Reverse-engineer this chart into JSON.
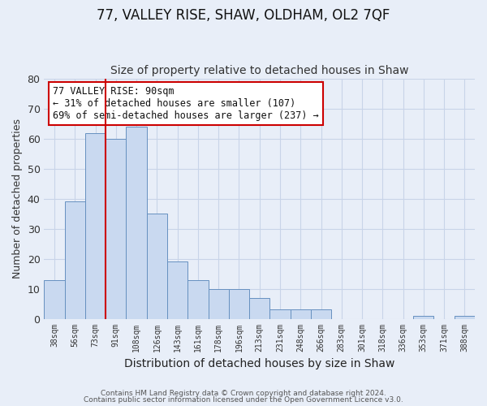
{
  "title": "77, VALLEY RISE, SHAW, OLDHAM, OL2 7QF",
  "subtitle": "Size of property relative to detached houses in Shaw",
  "xlabel": "Distribution of detached houses by size in Shaw",
  "ylabel": "Number of detached properties",
  "bar_labels": [
    "38sqm",
    "56sqm",
    "73sqm",
    "91sqm",
    "108sqm",
    "126sqm",
    "143sqm",
    "161sqm",
    "178sqm",
    "196sqm",
    "213sqm",
    "231sqm",
    "248sqm",
    "266sqm",
    "283sqm",
    "301sqm",
    "318sqm",
    "336sqm",
    "353sqm",
    "371sqm",
    "388sqm"
  ],
  "bar_values": [
    13,
    39,
    62,
    60,
    64,
    35,
    19,
    13,
    10,
    10,
    7,
    3,
    3,
    3,
    0,
    0,
    0,
    0,
    1,
    0,
    1
  ],
  "bar_color": "#c9d9f0",
  "bar_edge_color": "#6690c0",
  "vline_color": "#cc0000",
  "ylim": [
    0,
    80
  ],
  "yticks": [
    0,
    10,
    20,
    30,
    40,
    50,
    60,
    70,
    80
  ],
  "annotation_title": "77 VALLEY RISE: 90sqm",
  "annotation_line1": "← 31% of detached houses are smaller (107)",
  "annotation_line2": "69% of semi-detached houses are larger (237) →",
  "annotation_box_color": "#ffffff",
  "annotation_box_edge": "#cc0000",
  "footnote1": "Contains HM Land Registry data © Crown copyright and database right 2024.",
  "footnote2": "Contains public sector information licensed under the Open Government Licence v3.0.",
  "background_color": "#e8eef8",
  "plot_background": "#e8eef8",
  "grid_color": "#c8d4e8",
  "title_fontsize": 12,
  "subtitle_fontsize": 10
}
